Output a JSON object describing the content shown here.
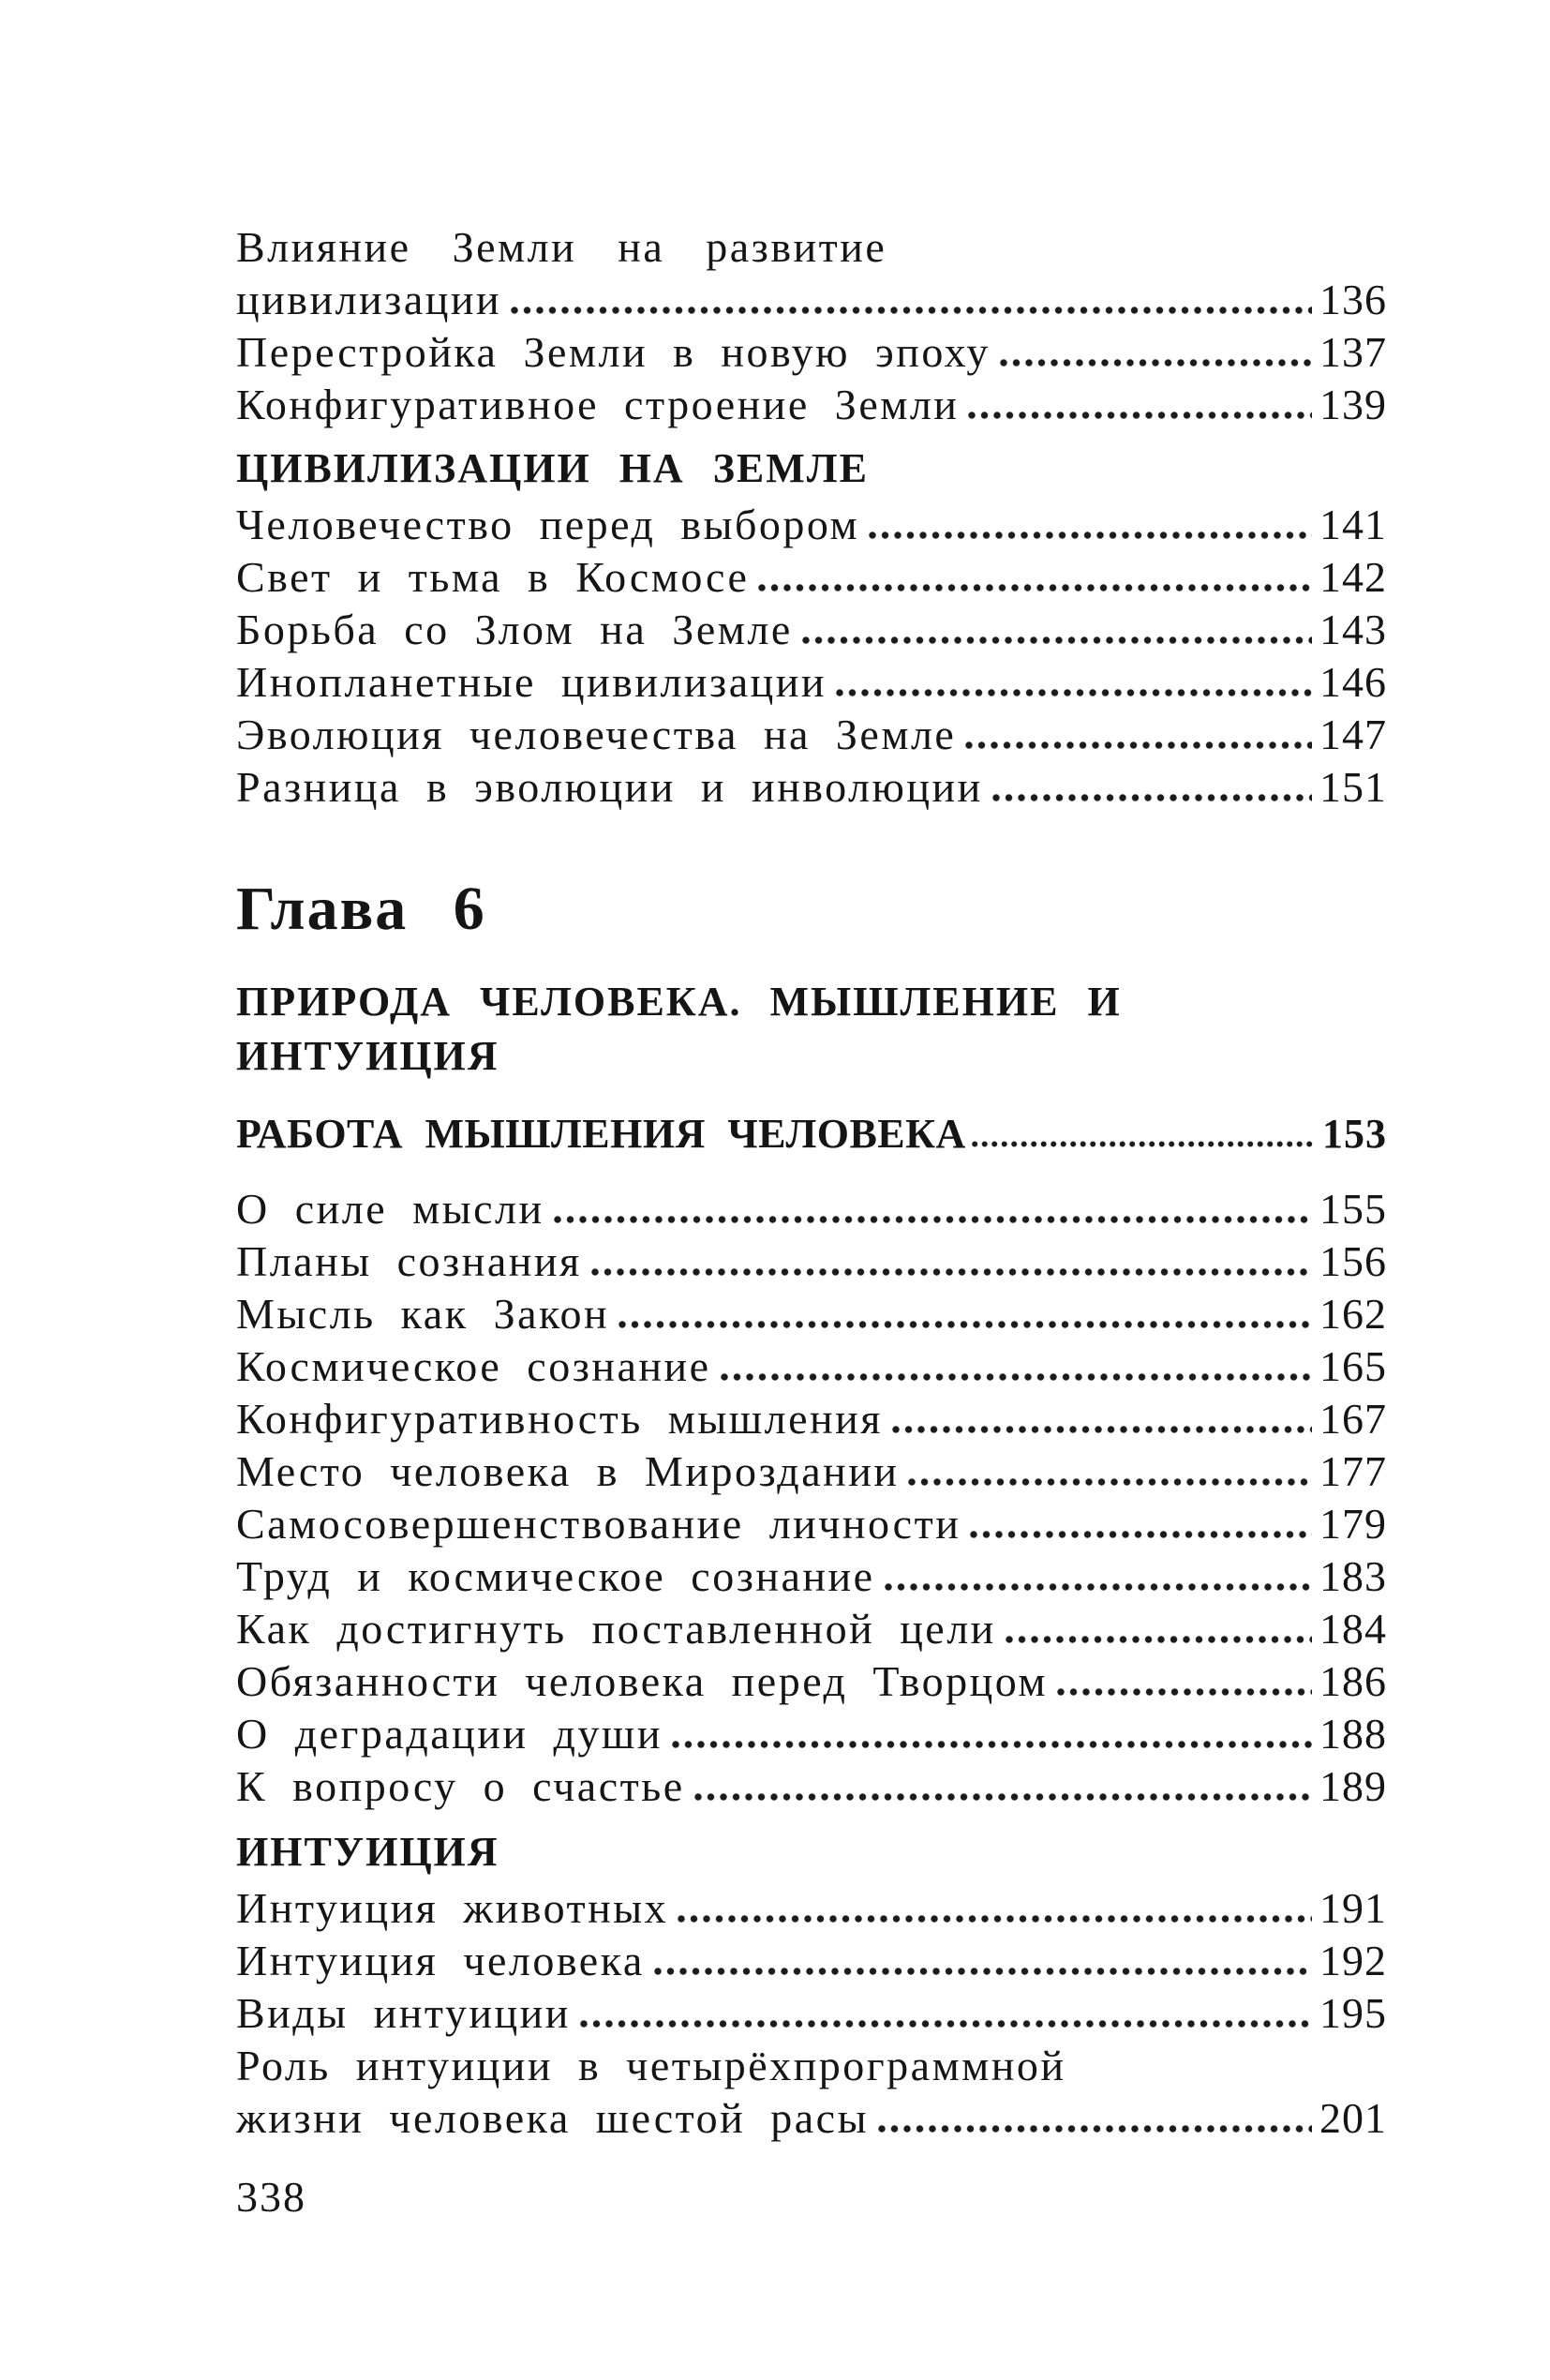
{
  "page": {
    "background_color": "#ffffff",
    "text_color": "#151515",
    "footer_page_number": "338"
  },
  "toc": {
    "lines": [
      {
        "type": "entry-wrap-first",
        "text": "Влияние Земли на развитие"
      },
      {
        "type": "entry-wrap-last",
        "text": "цивилизации",
        "page": "136"
      },
      {
        "type": "entry",
        "text": "Перестройка Земли в новую эпоху",
        "page": "137"
      },
      {
        "type": "entry",
        "text": "Конфигуративное строение Земли",
        "page": "139"
      },
      {
        "type": "section-head",
        "text": "ЦИВИЛИЗАЦИИ НА ЗЕМЛЕ"
      },
      {
        "type": "entry",
        "text": "Человечество перед выбором",
        "page": "141"
      },
      {
        "type": "entry",
        "text": "Свет и тьма в Космосе",
        "page": "142"
      },
      {
        "type": "entry",
        "text": "Борьба со Злом на Земле",
        "page": "143"
      },
      {
        "type": "entry",
        "text": "Инопланетные цивилизации",
        "page": "146"
      },
      {
        "type": "entry",
        "text": "Эволюция человечества на Земле",
        "page": "147"
      },
      {
        "type": "entry",
        "text": "Разница в эволюции и инволюции",
        "page": "151"
      },
      {
        "type": "chapter-heading",
        "text": "Глава 6"
      },
      {
        "type": "chapter-subtitle-line1",
        "text": "ПРИРОДА ЧЕЛОВЕКА. МЫШЛЕНИЕ И"
      },
      {
        "type": "chapter-subtitle-line2",
        "text": "ИНТУИЦИЯ"
      },
      {
        "type": "section-head-numbered",
        "text": "РАБОТА МЫШЛЕНИЯ ЧЕЛОВЕКА",
        "page": "153"
      },
      {
        "type": "entry",
        "text": "О силе мысли",
        "page": "155"
      },
      {
        "type": "entry",
        "text": "Планы сознания",
        "page": "156"
      },
      {
        "type": "entry",
        "text": "Мысль как Закон",
        "page": "162"
      },
      {
        "type": "entry",
        "text": "Космическое сознание",
        "page": "165"
      },
      {
        "type": "entry",
        "text": "Конфигуративность мышления",
        "page": "167"
      },
      {
        "type": "entry",
        "text": "Место человека в Мироздании",
        "page": "177"
      },
      {
        "type": "entry",
        "text": "Самосовершенствование личности",
        "page": "179"
      },
      {
        "type": "entry",
        "text": "Труд и космическое сознание",
        "page": "183"
      },
      {
        "type": "entry",
        "text": "Как достигнуть поставленной цели",
        "page": "184"
      },
      {
        "type": "entry",
        "text": "Обязанности человека перед Творцом",
        "page": "186"
      },
      {
        "type": "entry",
        "text": "О деградации души",
        "page": "188"
      },
      {
        "type": "entry",
        "text": "К вопросу о счастье",
        "page": "189"
      },
      {
        "type": "section-head",
        "text": "ИНТУИЦИЯ"
      },
      {
        "type": "entry",
        "text": "Интуиция животных",
        "page": "191"
      },
      {
        "type": "entry",
        "text": "Интуиция человека",
        "page": "192"
      },
      {
        "type": "entry",
        "text": "Виды интуиции",
        "page": "195"
      },
      {
        "type": "entry-wrap-first",
        "text": "Роль интуиции в четырёхпрограммной"
      },
      {
        "type": "entry-wrap-last",
        "text": "жизни человека шестой расы",
        "page": "201"
      }
    ]
  }
}
